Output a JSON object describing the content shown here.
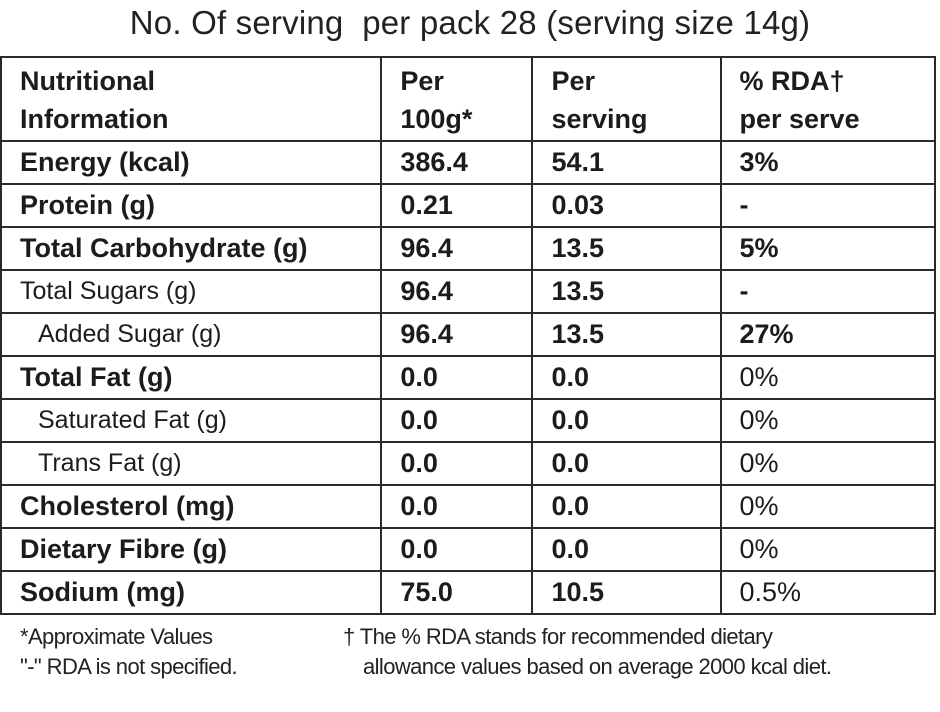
{
  "title": "No. Of serving  per pack 28 (serving size 14g)",
  "table": {
    "headers": [
      [
        "Nutritional",
        "Information"
      ],
      [
        "Per",
        "100g*"
      ],
      [
        "Per",
        "serving"
      ],
      [
        "% RDA†",
        "per serve"
      ]
    ],
    "rows": [
      {
        "nutrient": "Energy (kcal)",
        "per_100g": "386.4",
        "per_serving": "54.1",
        "rda": "3%"
      },
      {
        "nutrient": "Protein (g)",
        "per_100g": "0.21",
        "per_serving": "0.03",
        "rda": "-"
      },
      {
        "nutrient": "Total Carbohydrate (g)",
        "per_100g": "96.4",
        "per_serving": "13.5",
        "rda": "5%"
      },
      {
        "nutrient": "Total Sugars (g)",
        "per_100g": "96.4",
        "per_serving": "13.5",
        "rda": "-"
      },
      {
        "nutrient": "Added Sugar (g)",
        "per_100g": "96.4",
        "per_serving": "13.5",
        "rda": "27%"
      },
      {
        "nutrient": "Total Fat (g)",
        "per_100g": "0.0",
        "per_serving": "0.0",
        "rda": "0%"
      },
      {
        "nutrient": "Saturated Fat (g)",
        "per_100g": "0.0",
        "per_serving": "0.0",
        "rda": "0%"
      },
      {
        "nutrient": "Trans Fat (g)",
        "per_100g": "0.0",
        "per_serving": "0.0",
        "rda": "0%"
      },
      {
        "nutrient": "Cholesterol (mg)",
        "per_100g": "0.0",
        "per_serving": "0.0",
        "rda": "0%"
      },
      {
        "nutrient": "Dietary Fibre (g)",
        "per_100g": "0.0",
        "per_serving": "0.0",
        "rda": "0%"
      },
      {
        "nutrient": "Sodium (mg)",
        "per_100g": "75.0",
        "per_serving": "10.5",
        "rda": "0.5%"
      }
    ]
  },
  "footnotes": {
    "approx": "*Approximate Values",
    "not_specified": "\"-\" RDA is not specified.",
    "rda_line1": "† The % RDA stands for recommended dietary",
    "rda_line2": "allowance values based on average 2000 kcal diet."
  }
}
